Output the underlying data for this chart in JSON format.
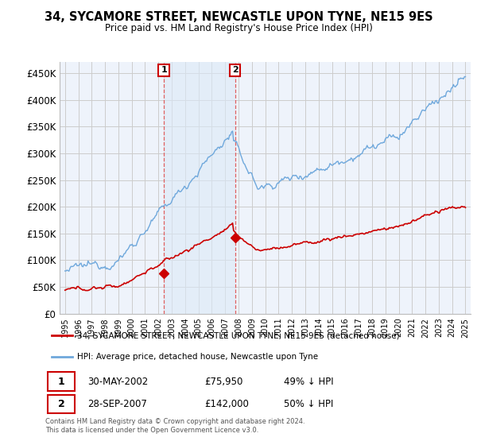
{
  "title": "34, SYCAMORE STREET, NEWCASTLE UPON TYNE, NE15 9ES",
  "subtitle": "Price paid vs. HM Land Registry's House Price Index (HPI)",
  "ylabel_ticks": [
    "£0",
    "£50K",
    "£100K",
    "£150K",
    "£200K",
    "£250K",
    "£300K",
    "£350K",
    "£400K",
    "£450K"
  ],
  "ytick_values": [
    0,
    50000,
    100000,
    150000,
    200000,
    250000,
    300000,
    350000,
    400000,
    450000
  ],
  "ylim": [
    0,
    470000
  ],
  "xlim_start": 1994.6,
  "xlim_end": 2025.4,
  "hpi_color": "#6fa8dc",
  "hpi_color_fill": "#dce9f7",
  "price_color": "#cc0000",
  "dashed_color": "#e06060",
  "marker1_date": 2002.41,
  "marker1_price": 75950,
  "marker2_date": 2007.74,
  "marker2_price": 142000,
  "legend_label1": "34, SYCAMORE STREET, NEWCASTLE UPON TYNE, NE15 9ES (detached house)",
  "legend_label2": "HPI: Average price, detached house, Newcastle upon Tyne",
  "table_row1": [
    "1",
    "30-MAY-2002",
    "£75,950",
    "49% ↓ HPI"
  ],
  "table_row2": [
    "2",
    "28-SEP-2007",
    "£142,000",
    "50% ↓ HPI"
  ],
  "footnote": "Contains HM Land Registry data © Crown copyright and database right 2024.\nThis data is licensed under the Open Government Licence v3.0.",
  "bg_color": "#ffffff",
  "plot_bg_color": "#eef3fb",
  "grid_color": "#cccccc"
}
